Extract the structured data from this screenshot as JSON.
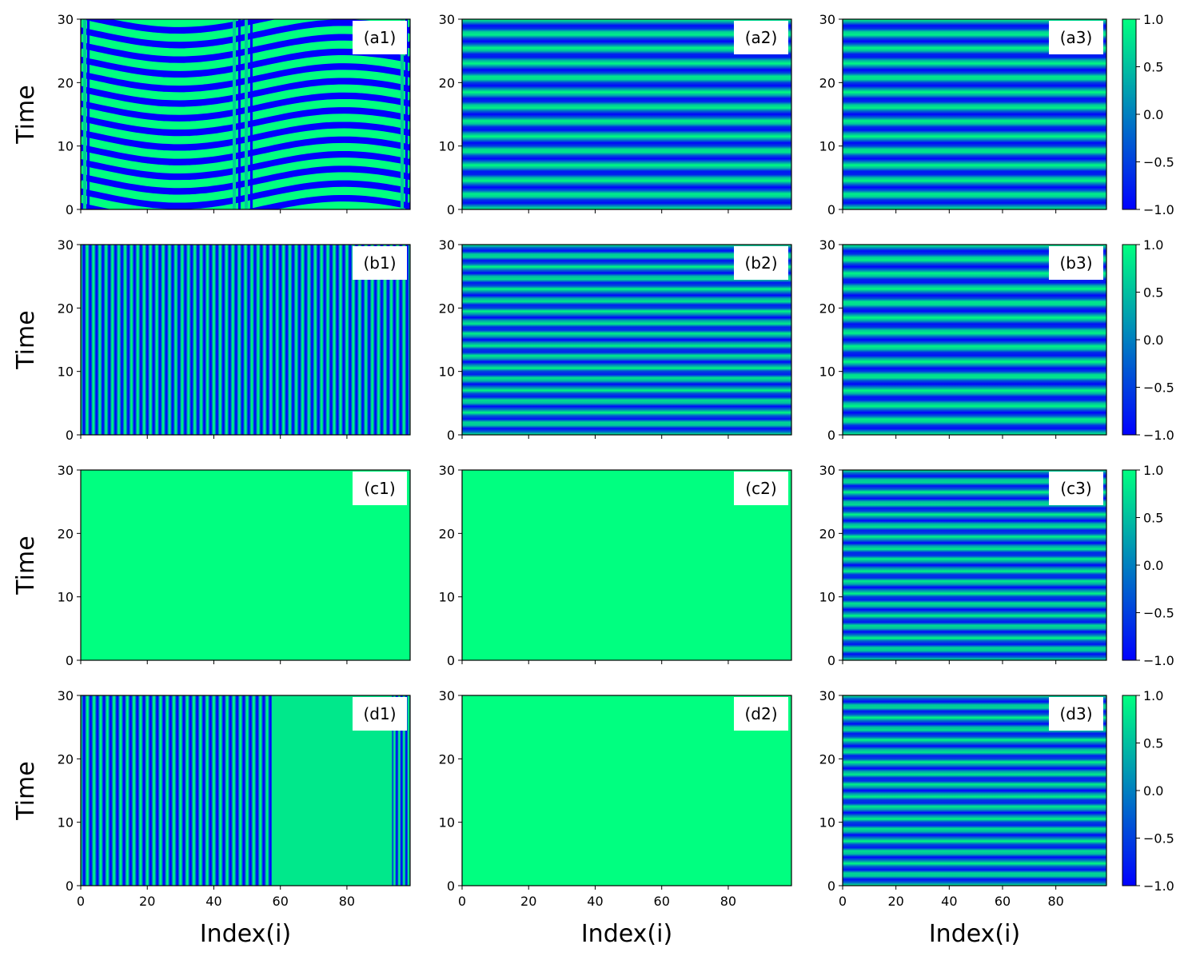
{
  "chart_data": {
    "type": "heatmap",
    "colormap": "winter",
    "colormap_colors": [
      "#0000ff",
      "#00ff80"
    ],
    "xlabel": "Index(i)",
    "ylabel": "Time",
    "xlim": [
      0,
      99
    ],
    "ylim": [
      0,
      30
    ],
    "xticks": [
      "0",
      "20",
      "40",
      "60",
      "80"
    ],
    "yticks": [
      "0",
      "10",
      "20",
      "30"
    ],
    "colorbar": {
      "range": [
        -1.0,
        1.0
      ],
      "ticks": [
        "1.0",
        "0.5",
        "0.0",
        "−0.5",
        "−1.0"
      ]
    },
    "panels": [
      {
        "label": "(a1)",
        "pattern": "wavy",
        "description": "wave fronts bending over index with phase defects near i=2, i=48 and i=98"
      },
      {
        "label": "(a2)",
        "pattern": "horizontal",
        "bands": 13
      },
      {
        "label": "(a3)",
        "pattern": "horizontal",
        "bands": 13
      },
      {
        "label": "(b1)",
        "pattern": "vertical",
        "description": "dense alternating vertical stripes"
      },
      {
        "label": "(b2)",
        "pattern": "horizontal",
        "bands": 17
      },
      {
        "label": "(b3)",
        "pattern": "horizontal",
        "bands": 13
      },
      {
        "label": "(c1)",
        "pattern": "uniform",
        "value": 1.0
      },
      {
        "label": "(c2)",
        "pattern": "uniform",
        "value": 1.0
      },
      {
        "label": "(c3)",
        "pattern": "horizontal",
        "bands": 17
      },
      {
        "label": "(d1)",
        "pattern": "stripes-uniform",
        "description": "vertical stripes for i<57, near-uniform high value for i>57, stripes again near i=94-98"
      },
      {
        "label": "(d2)",
        "pattern": "uniform",
        "value": 1.0
      },
      {
        "label": "(d3)",
        "pattern": "horizontal",
        "bands": 17
      }
    ]
  }
}
